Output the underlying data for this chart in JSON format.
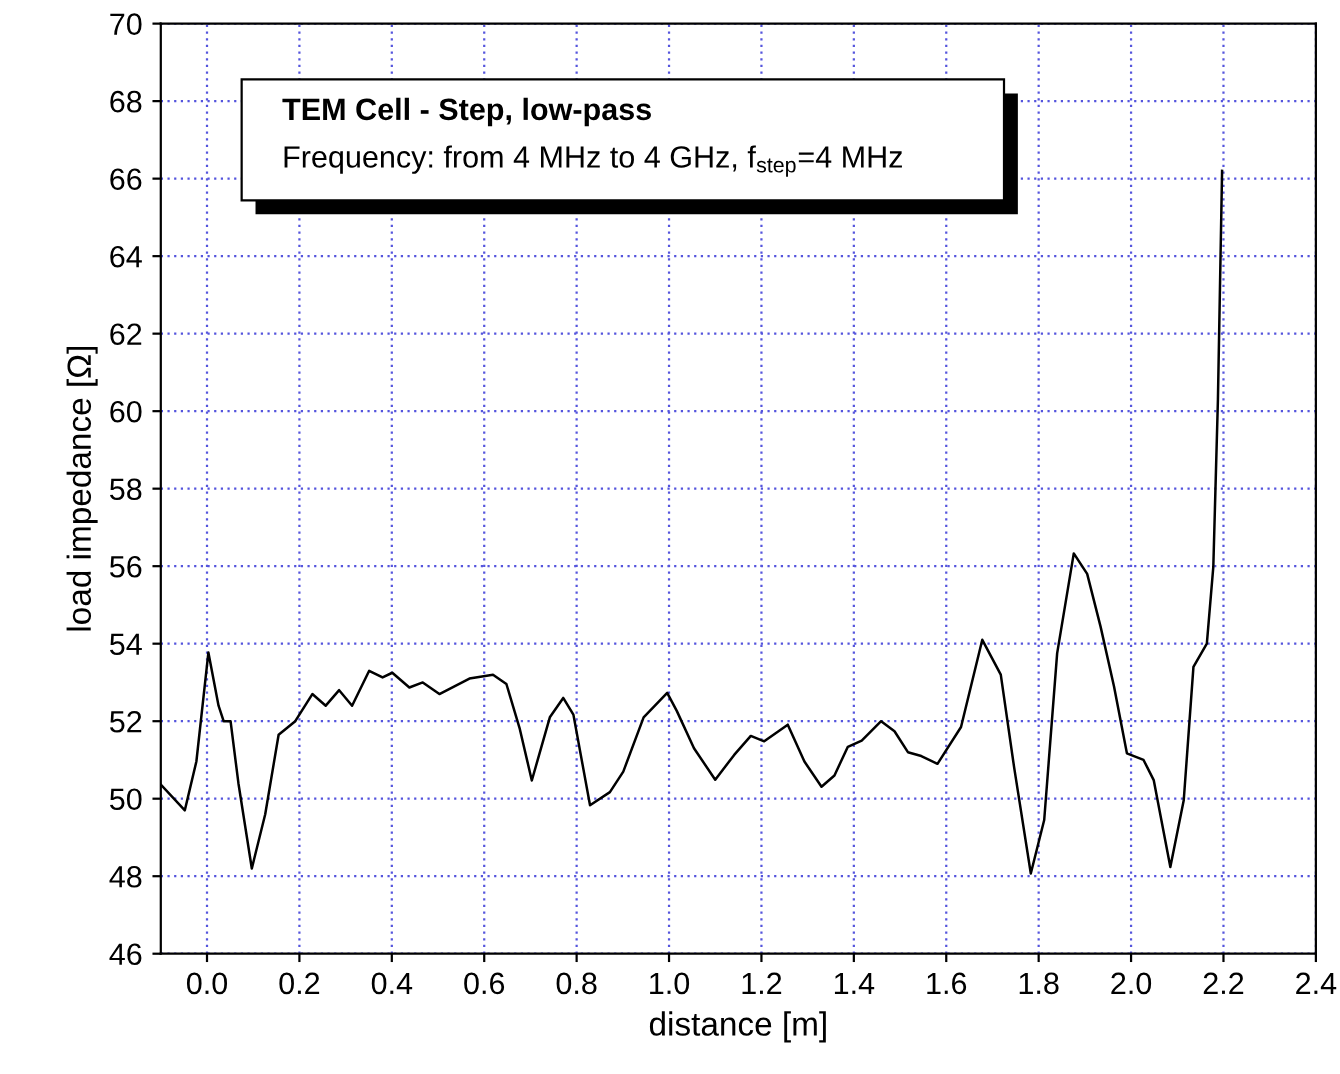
{
  "chart_data": {
    "type": "line",
    "title": "TEM Cell - Step, low-pass",
    "subtitle": "Frequency: from 4 MHz to 4 GHz, f$_{step}$=4 MHz",
    "xlabel": "distance [m]",
    "ylabel": "load impedance [Ω]",
    "x": [
      -0.099,
      -0.048,
      -0.023,
      0.003,
      0.025,
      0.036,
      0.051,
      0.068,
      0.097,
      0.126,
      0.155,
      0.191,
      0.228,
      0.257,
      0.286,
      0.314,
      0.351,
      0.38,
      0.401,
      0.438,
      0.467,
      0.503,
      0.568,
      0.619,
      0.648,
      0.677,
      0.703,
      0.742,
      0.771,
      0.793,
      0.829,
      0.872,
      0.901,
      0.945,
      0.996,
      1.017,
      1.054,
      1.1,
      1.141,
      1.177,
      1.206,
      1.257,
      1.293,
      1.33,
      1.358,
      1.387,
      1.417,
      1.459,
      1.488,
      1.517,
      1.546,
      1.581,
      1.632,
      1.678,
      1.718,
      1.747,
      1.783,
      1.812,
      1.84,
      1.876,
      1.905,
      1.934,
      1.963,
      1.991,
      2.027,
      2.049,
      2.085,
      2.114,
      2.135,
      2.164,
      2.178,
      2.188,
      2.197
    ],
    "series": [
      {
        "color": "#000000",
        "values": [
          50.35,
          49.7,
          50.96,
          53.77,
          52.4,
          52.0,
          52.0,
          50.4,
          48.2,
          49.6,
          51.65,
          52.0,
          52.7,
          52.4,
          52.8,
          52.4,
          53.3,
          53.13,
          53.25,
          52.87,
          53.0,
          52.7,
          53.1,
          53.2,
          52.96,
          51.8,
          50.47,
          52.1,
          52.6,
          52.17,
          49.83,
          50.17,
          50.7,
          52.1,
          52.73,
          52.26,
          51.3,
          50.49,
          51.13,
          51.62,
          51.48,
          51.91,
          50.96,
          50.31,
          50.6,
          51.34,
          51.5,
          52.0,
          51.74,
          51.2,
          51.1,
          50.9,
          51.85,
          54.1,
          53.2,
          50.8,
          48.07,
          49.45,
          53.75,
          56.33,
          55.8,
          54.44,
          52.9,
          51.17,
          51.0,
          50.48,
          48.24,
          49.96,
          53.4,
          54.0,
          55.98,
          60.3,
          66.2
        ]
      }
    ],
    "xlim": [
      -0.1,
      2.4
    ],
    "xticks": [
      {
        "value": 0,
        "label": "0.0"
      },
      0.2,
      0.4,
      0.6,
      0.8,
      {
        "value": 1,
        "label": "1.0"
      },
      1.2,
      1.4,
      1.6,
      1.8,
      {
        "value": 2,
        "label": "2.0"
      },
      2.2,
      2.4
    ],
    "ylim": [
      46,
      70
    ],
    "yticks": [
      46,
      48,
      50,
      52,
      54,
      56,
      58,
      60,
      62,
      64,
      66,
      68,
      70
    ],
    "grid": true,
    "line_style": "solid"
  }
}
